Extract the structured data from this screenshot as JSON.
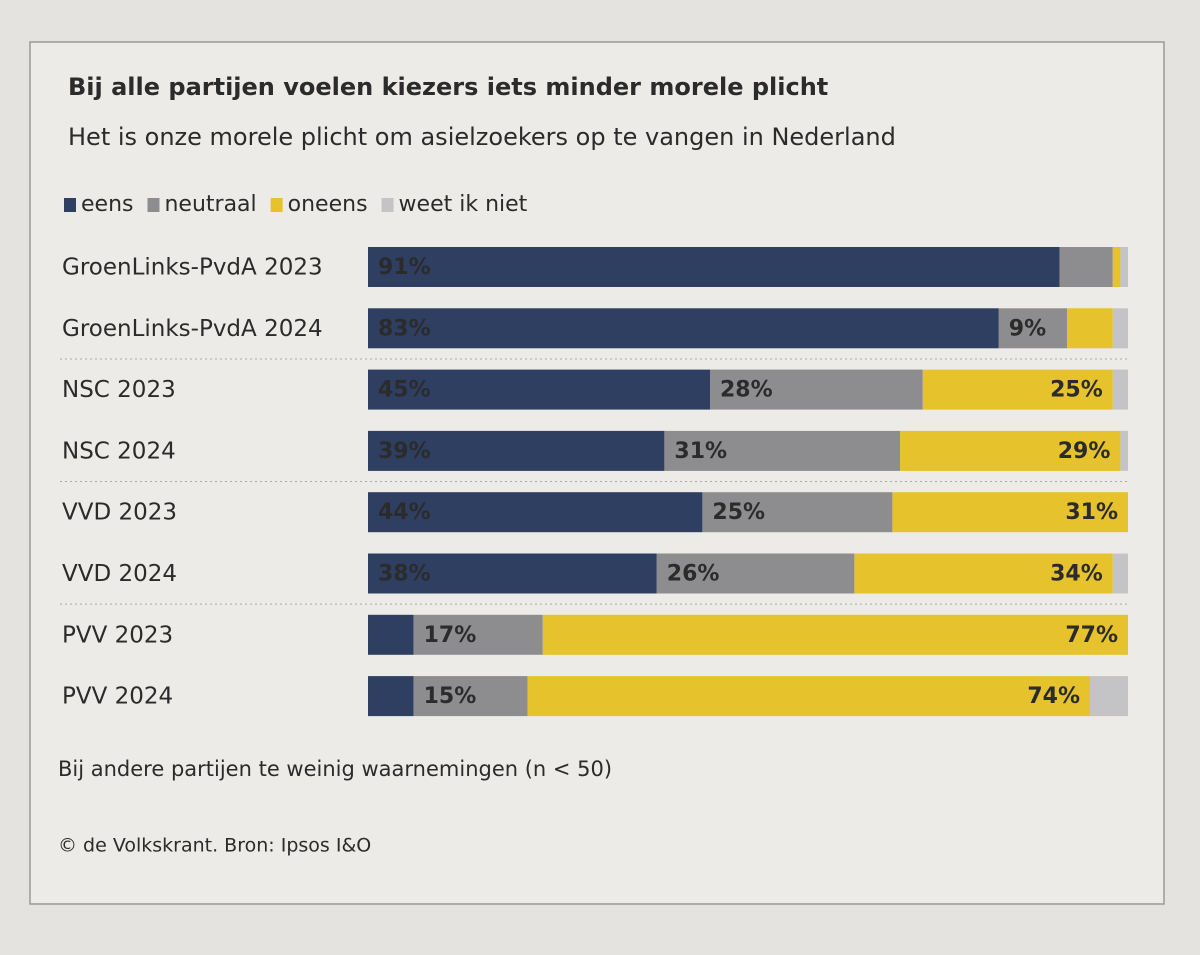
{
  "chart_data": {
    "type": "stacked-bar-horizontal",
    "title": "Bij alle partijen voelen kiezers iets minder morele plicht",
    "subtitle": "Het is onze morele plicht om asielzoekers op te vangen in Nederland",
    "categories": [
      "GroenLinks-PvdA 2023",
      "GroenLinks-PvdA 2024",
      "NSC 2023",
      "NSC 2024",
      "VVD 2023",
      "VVD 2024",
      "PVV 2023",
      "PVV 2024"
    ],
    "series": [
      {
        "name": "eens",
        "color": "#2f3f62",
        "values": [
          91,
          83,
          45,
          39,
          44,
          38,
          6,
          6
        ],
        "value_labels": [
          "91%",
          "83%",
          "45%",
          "39%",
          "44%",
          "38%",
          null,
          null
        ]
      },
      {
        "name": "neutraal",
        "color": "#8d8d8f",
        "values": [
          7,
          9,
          28,
          31,
          25,
          26,
          17,
          15
        ],
        "value_labels": [
          null,
          "9%",
          "28%",
          "31%",
          "25%",
          "26%",
          "17%",
          "15%"
        ]
      },
      {
        "name": "oneens",
        "color": "#e6c22c",
        "values": [
          1,
          6,
          25,
          29,
          31,
          34,
          77,
          74
        ],
        "value_labels": [
          null,
          null,
          "25%",
          "29%",
          "31%",
          "34%",
          "77%",
          "74%"
        ]
      },
      {
        "name": "weet ik niet",
        "color": "#c4c4c6",
        "values": [
          1,
          2,
          2,
          1,
          0,
          2,
          0,
          5
        ],
        "value_labels": [
          null,
          null,
          null,
          null,
          null,
          null,
          null,
          null
        ]
      }
    ],
    "xlim": [
      0,
      100
    ],
    "note": "Bij andere partijen te weinig waarnemingen (n < 50)",
    "source": "© de Volkskrant. Bron: Ipsos I&O"
  }
}
